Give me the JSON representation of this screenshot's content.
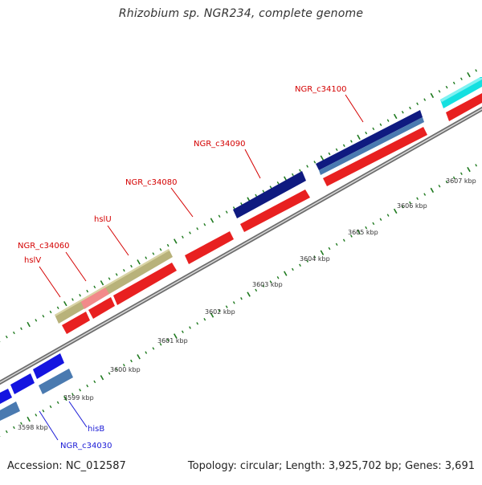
{
  "title": "Rhizobium sp. NGR234, complete genome",
  "footer": {
    "accession": "Accession: NC_012587",
    "stats": "Topology: circular; Length: 3,925,702 bp; Genes: 3,691"
  },
  "colors": {
    "backbone": "#8c8c8c",
    "tick": "#1f7a1f",
    "label_red": "#d40000",
    "label_blue": "#1a1ad6"
  },
  "ruler": {
    "ticks": [
      "3598 kbp",
      "3599 kbp",
      "3600 kbp",
      "3601 kbp",
      "3602 kbp",
      "3603 kbp",
      "3604 kbp",
      "3605 kbp",
      "3606 kbp",
      "3607 kbp"
    ]
  },
  "features": [
    {
      "label": "NGR_c34100",
      "color": "red"
    },
    {
      "label": "NGR_c34090",
      "color": "red"
    },
    {
      "label": "NGR_c34080",
      "color": "red"
    },
    {
      "label": "hslU",
      "color": "red"
    },
    {
      "label": "NGR_c34060",
      "color": "red"
    },
    {
      "label": "hslV",
      "color": "red"
    },
    {
      "label": "hisB",
      "color": "blue"
    },
    {
      "label": "NGR_c34030",
      "color": "blue"
    }
  ]
}
